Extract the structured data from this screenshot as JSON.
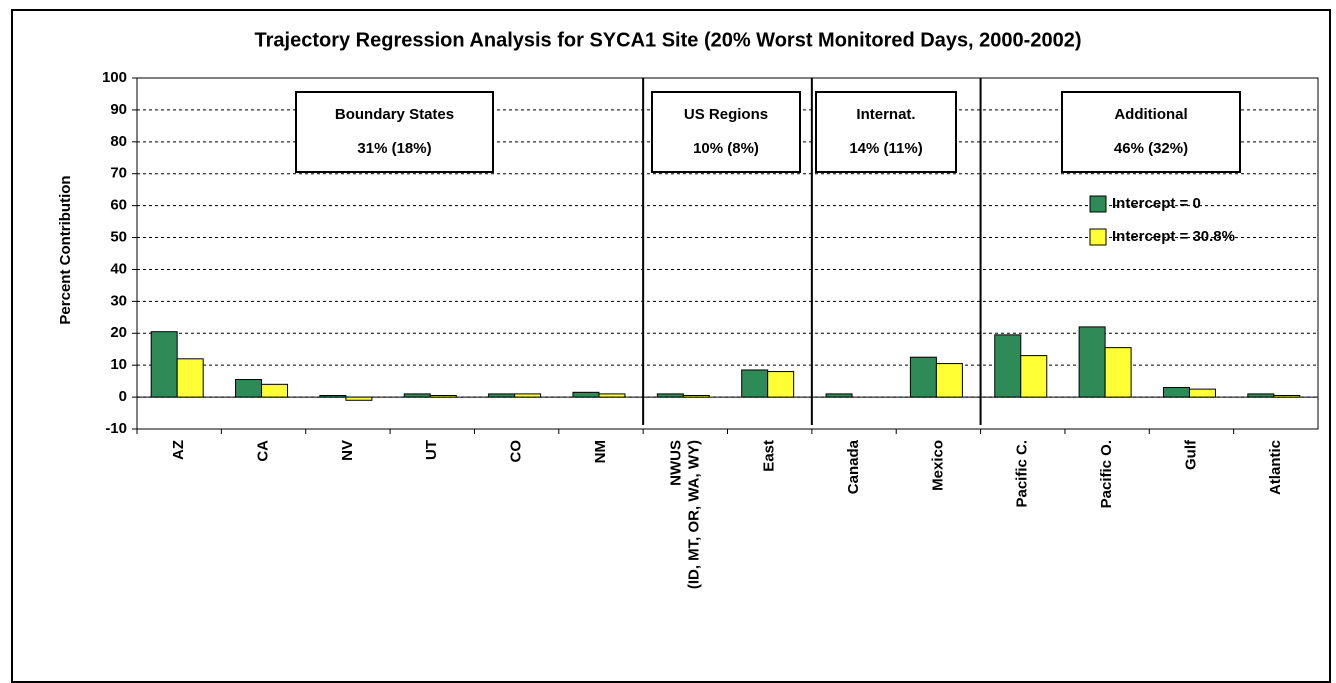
{
  "chart_data": {
    "type": "bar",
    "title": "Trajectory Regression Analysis for SYCA1 Site (20% Worst Monitored Days, 2000-2002)",
    "y_label": "Percent Contribution",
    "categories": [
      "AZ",
      "CA",
      "NV",
      "UT",
      "CO",
      "NM",
      "NWUS\n(ID, MT, OR, WA, WY)",
      "East",
      "Canada",
      "Mexico",
      "Pacific C.",
      "Pacific O.",
      "Gulf",
      "Atlantic"
    ],
    "series": [
      {
        "name": "Intercept = 0",
        "color": "#2e8b57",
        "values": [
          20.5,
          5.5,
          0.5,
          1,
          1,
          1.5,
          1,
          8.5,
          1,
          12.5,
          19.5,
          22,
          3,
          1
        ]
      },
      {
        "name": "Intercept = 30.8%",
        "color": "#ffff33",
        "values": [
          12,
          4,
          -1,
          0.5,
          1,
          1,
          0.5,
          8,
          0,
          10.5,
          13,
          15.5,
          2.5,
          0.5
        ]
      }
    ],
    "groups": [
      {
        "name": "Boundary States",
        "label": "31% (18%)"
      },
      {
        "name": "US Regions",
        "label": "10% (8%)"
      },
      {
        "name": "Internat.",
        "label": "14% (11%)"
      },
      {
        "name": "Additional",
        "label": "46% (32%)"
      }
    ],
    "ylim": [
      -10,
      100
    ],
    "yticks": [
      -10,
      0,
      10,
      20,
      30,
      40,
      50,
      60,
      70,
      80,
      90,
      100
    ],
    "grid": true
  }
}
